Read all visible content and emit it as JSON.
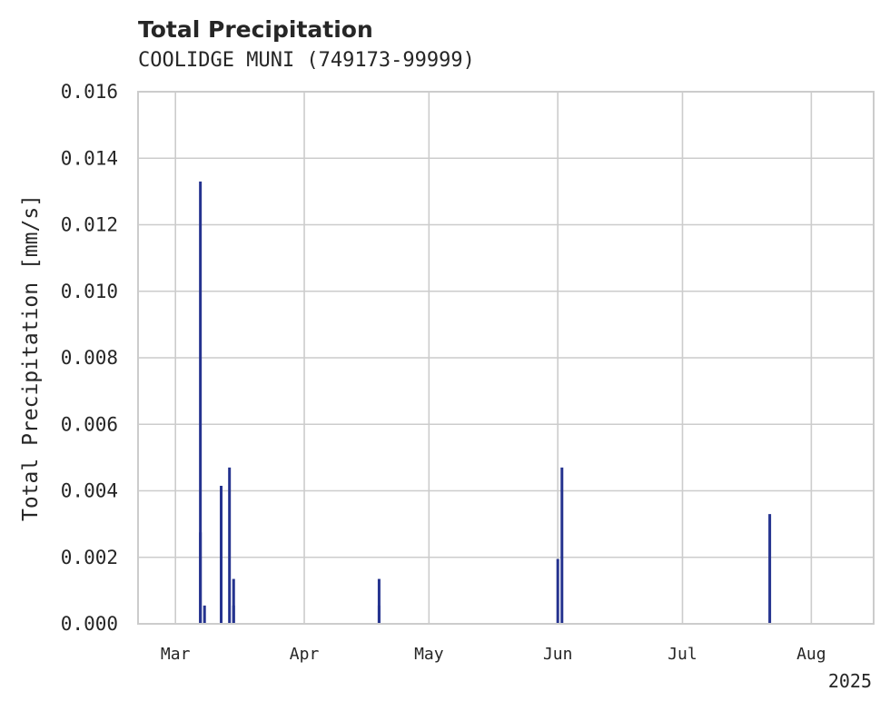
{
  "chart_data": {
    "type": "bar",
    "title": "Total Precipitation",
    "subtitle": "COOLIDGE MUNI (749173-99999)",
    "xlabel": "",
    "ylabel": "Total Precipitation [mm/s]",
    "xlim": [
      "2025-02-20",
      "2025-08-16"
    ],
    "ylim": [
      0,
      0.016
    ],
    "yticks": [
      "0.000",
      "0.002",
      "0.004",
      "0.006",
      "0.008",
      "0.010",
      "0.012",
      "0.014",
      "0.016"
    ],
    "xticks": [
      {
        "date": "2025-03-01",
        "label": "Mar"
      },
      {
        "date": "2025-04-01",
        "label": "Apr"
      },
      {
        "date": "2025-05-01",
        "label": "May"
      },
      {
        "date": "2025-06-01",
        "label": "Jun"
      },
      {
        "date": "2025-07-01",
        "label": "Jul"
      },
      {
        "date": "2025-08-01",
        "label": "Aug"
      }
    ],
    "year_label": "2025",
    "grid": true,
    "color": "#25338f",
    "points": [
      {
        "date": "2025-03-07",
        "value": 0.00275
      },
      {
        "date": "2025-03-07",
        "value": 0.0133
      },
      {
        "date": "2025-03-08",
        "value": 0.00055
      },
      {
        "date": "2025-03-12",
        "value": 0.00415
      },
      {
        "date": "2025-03-14",
        "value": 0.0047
      },
      {
        "date": "2025-03-15",
        "value": 0.00135
      },
      {
        "date": "2025-03-15",
        "value": 0.00055
      },
      {
        "date": "2025-04-19",
        "value": 0.00135
      },
      {
        "date": "2025-04-19",
        "value": 0.00055
      },
      {
        "date": "2025-06-01",
        "value": 0.00195
      },
      {
        "date": "2025-06-02",
        "value": 0.0047
      },
      {
        "date": "2025-07-22",
        "value": 0.0033
      }
    ]
  }
}
